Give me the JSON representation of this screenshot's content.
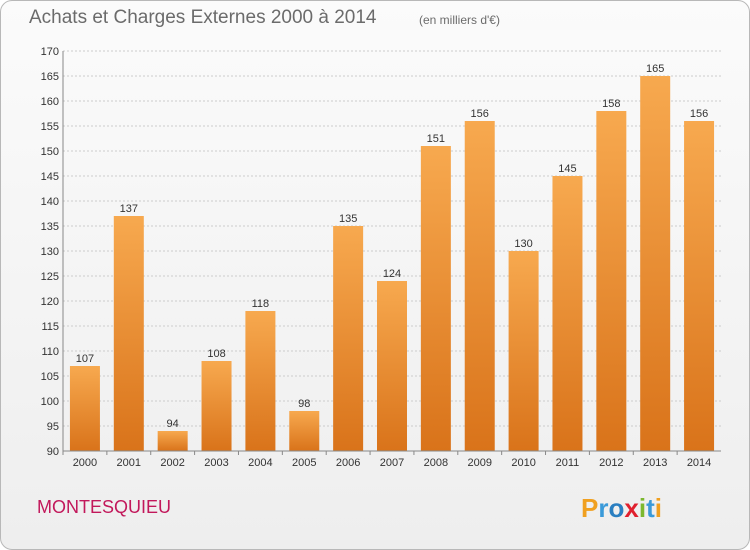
{
  "header": {
    "title": "Achats et Charges Externes 2000 à 2014",
    "subtitle": "(en milliers d'€)"
  },
  "footer": {
    "city": "MONTESQUIEU",
    "logo_text": "Proxiti"
  },
  "colors": {
    "bar_top": "#f7a94f",
    "bar_bottom": "#d9731a",
    "grid": "#cccccc",
    "axis_text": "#333333",
    "city": "#c2185b"
  },
  "chart_data": {
    "type": "bar",
    "title": "Achats et Charges Externes 2000 à 2014",
    "subtitle": "(en milliers d'€)",
    "categories": [
      "2000",
      "2001",
      "2002",
      "2003",
      "2004",
      "2005",
      "2006",
      "2007",
      "2008",
      "2009",
      "2010",
      "2011",
      "2012",
      "2013",
      "2014"
    ],
    "values": [
      107,
      137,
      94,
      108,
      118,
      98,
      135,
      124,
      151,
      156,
      130,
      145,
      158,
      165,
      156
    ],
    "ylim": [
      90,
      170
    ],
    "yticks": [
      90,
      95,
      100,
      105,
      110,
      115,
      120,
      125,
      130,
      135,
      140,
      145,
      150,
      155,
      160,
      165,
      170
    ],
    "grid": true,
    "xlabel": "",
    "ylabel": ""
  }
}
